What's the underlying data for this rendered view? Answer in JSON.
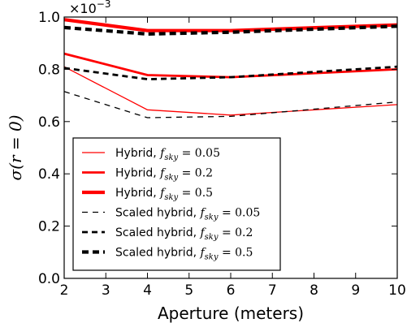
{
  "chart_data": {
    "type": "line",
    "xlabel": "Aperture (meters)",
    "ylabel": "σ(r = 0)",
    "y_multiplier": "×10",
    "y_multiplier_exp": "−3",
    "xlim": [
      2,
      10
    ],
    "ylim": [
      0.0,
      1.0
    ],
    "x_ticks": [
      2,
      3,
      4,
      5,
      6,
      7,
      8,
      9,
      10
    ],
    "y_ticks": [
      0.0,
      0.2,
      0.4,
      0.6,
      0.8,
      1.0
    ],
    "x": [
      2,
      4,
      6,
      10
    ],
    "grid": false,
    "legend_position": "lower-left",
    "series": [
      {
        "name": "Hybrid, f_sky = 0.05",
        "label_main": "Hybrid, ",
        "label_sub": "sky",
        "label_val": " = 0.05",
        "color": "#ff0000",
        "style": "solid",
        "weight": 1,
        "values": [
          0.81,
          0.645,
          0.625,
          0.665
        ]
      },
      {
        "name": "Hybrid, f_sky = 0.2",
        "label_main": "Hybrid, ",
        "label_sub": "sky",
        "label_val": " = 0.2",
        "color": "#ff0000",
        "style": "solid",
        "weight": 2,
        "values": [
          0.86,
          0.778,
          0.77,
          0.8
        ]
      },
      {
        "name": "Hybrid, f_sky = 0.5",
        "label_main": "Hybrid, ",
        "label_sub": "sky",
        "label_val": " = 0.5",
        "color": "#ff0000",
        "style": "solid",
        "weight": 3,
        "values": [
          0.99,
          0.948,
          0.948,
          0.97
        ]
      },
      {
        "name": "Scaled hybrid, f_sky = 0.05",
        "label_main": "Scaled hybrid, ",
        "label_sub": "sky",
        "label_val": " = 0.05",
        "color": "#000000",
        "style": "dashed",
        "weight": 1,
        "values": [
          0.715,
          0.615,
          0.62,
          0.675
        ]
      },
      {
        "name": "Scaled hybrid, f_sky = 0.2",
        "label_main": "Scaled hybrid, ",
        "label_sub": "sky",
        "label_val": " = 0.2",
        "color": "#000000",
        "style": "dashed",
        "weight": 2,
        "values": [
          0.805,
          0.762,
          0.77,
          0.81
        ]
      },
      {
        "name": "Scaled hybrid, f_sky = 0.5",
        "label_main": "Scaled hybrid, ",
        "label_sub": "sky",
        "label_val": " = 0.5",
        "color": "#000000",
        "style": "dashed",
        "weight": 3,
        "values": [
          0.96,
          0.935,
          0.942,
          0.965
        ]
      }
    ]
  }
}
